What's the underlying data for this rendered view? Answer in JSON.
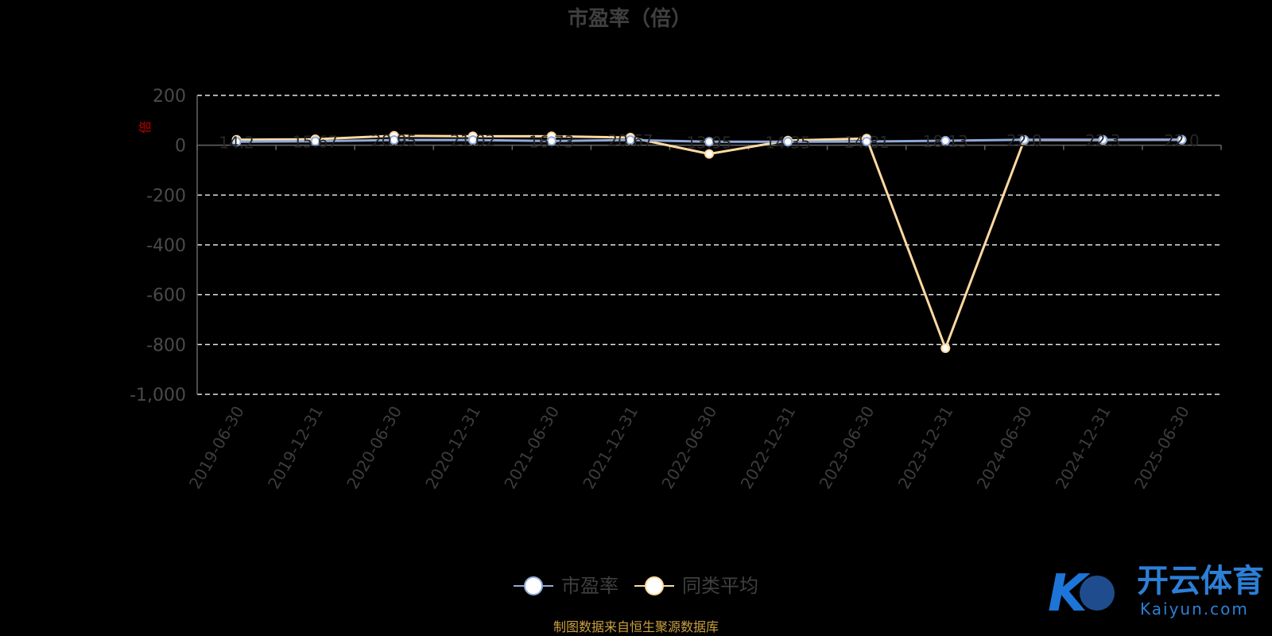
{
  "chart_data": {
    "type": "line",
    "title": "市盈率（倍）",
    "ylabel": "倍",
    "ylim": [
      -1000,
      200
    ],
    "yticks": [
      200,
      0,
      -200,
      -400,
      -600,
      -800,
      -1000
    ],
    "ytick_labels": [
      "200",
      "0",
      "-200",
      "-400",
      "-600",
      "-800",
      "-1,000"
    ],
    "categories": [
      "2019-06-30",
      "2019-12-31",
      "2020-06-30",
      "2020-12-31",
      "2021-06-30",
      "2021-12-31",
      "2022-06-30",
      "2022-12-31",
      "2023-06-30",
      "2023-12-31",
      "2024-06-30",
      "2024-12-31",
      "2025-06-30"
    ],
    "grid": true,
    "legend_position": "bottom",
    "series": [
      {
        "name": "市盈率",
        "color": "#8fa9d8",
        "values": [
          14,
          16,
          21,
          21,
          17,
          21,
          14,
          14,
          15,
          18,
          22,
          22,
          22
        ],
        "labels": [
          "14.2",
          "15.67",
          "20.95",
          "21.02",
          "16.73",
          "20.67",
          "13.95",
          "14.35",
          "14.81",
          "18.13",
          "22.0",
          "22.3",
          "22.0"
        ]
      },
      {
        "name": "同类平均",
        "color": "#ffd9a0",
        "values": [
          22,
          24,
          38,
          36,
          36,
          31,
          -35,
          19,
          27,
          -815,
          21,
          21,
          22
        ]
      }
    ],
    "source": "制图数据来自恒生聚源数据库"
  },
  "watermark": {
    "cn": "开云体育",
    "en": "Kaiyun.com"
  }
}
